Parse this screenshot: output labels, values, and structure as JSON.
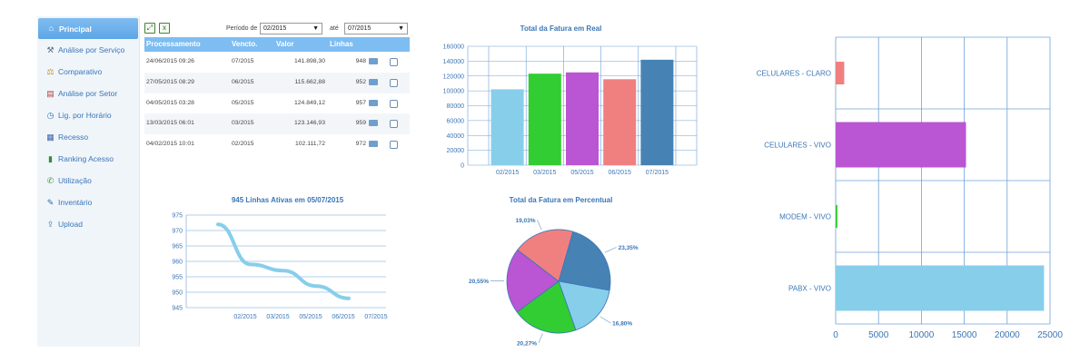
{
  "sidebar": {
    "items": [
      {
        "label": "Principal",
        "icon": "house-icon",
        "active": true
      },
      {
        "label": "Análise por Serviço",
        "icon": "tools-icon"
      },
      {
        "label": "Comparativo",
        "icon": "balance-icon"
      },
      {
        "label": "Análise por Setor",
        "icon": "chart-icon"
      },
      {
        "label": "Lig. por Horário",
        "icon": "clock-icon"
      },
      {
        "label": "Recesso",
        "icon": "calendar-icon"
      },
      {
        "label": "Ranking Acesso",
        "icon": "ranking-icon"
      },
      {
        "label": "Utilização",
        "icon": "phone-icon"
      },
      {
        "label": "Inventário",
        "icon": "inventory-icon"
      },
      {
        "label": "Upload",
        "icon": "upload-icon"
      }
    ]
  },
  "filters": {
    "period_label": "Período de",
    "from_value": "02/2015",
    "to_label": "até",
    "to_value": "07/2015"
  },
  "table": {
    "headers": [
      "Processamento",
      "Vencto.",
      "Valor",
      "Linhas"
    ],
    "rows": [
      {
        "processamento": "24/06/2015 09:26",
        "vencto": "07/2015",
        "valor": "141.898,30",
        "linhas": "948"
      },
      {
        "processamento": "27/05/2015 08:29",
        "vencto": "06/2015",
        "valor": "115.662,88",
        "linhas": "952"
      },
      {
        "processamento": "04/05/2015 03:28",
        "vencto": "05/2015",
        "valor": "124.849,12",
        "linhas": "957"
      },
      {
        "processamento": "13/03/2015 06:01",
        "vencto": "03/2015",
        "valor": "123.146,93",
        "linhas": "959"
      },
      {
        "processamento": "04/02/2015 10:01",
        "vencto": "02/2015",
        "valor": "102.111,72",
        "linhas": "972"
      }
    ]
  },
  "chart_data": [
    {
      "type": "bar",
      "title": "Total da Fatura em Real",
      "categories": [
        "02/2015",
        "03/2015",
        "05/2015",
        "06/2015",
        "07/2015"
      ],
      "values": [
        102111.72,
        123146.93,
        124849.12,
        115662.88,
        141898.3
      ],
      "colors": [
        "#87ceeb",
        "#32cd32",
        "#ba55d3",
        "#f08080",
        "#4682b4"
      ],
      "ylim": [
        0,
        160000
      ],
      "yticks": [
        "0",
        "20000",
        "40000",
        "60000",
        "80000",
        "100000",
        "120000",
        "140000",
        "160000"
      ],
      "grid": true
    },
    {
      "type": "line",
      "title": "945 Linhas Ativas em 05/07/2015",
      "categories": [
        "02/2015",
        "03/2015",
        "05/2015",
        "06/2015",
        "07/2015"
      ],
      "values": [
        972,
        959,
        957,
        952,
        948
      ],
      "color": "#87ceeb",
      "ylim": [
        945,
        975
      ],
      "yticks": [
        "945",
        "950",
        "955",
        "960",
        "965",
        "970",
        "975"
      ],
      "grid": true
    },
    {
      "type": "pie",
      "title": "Total da Fatura em Percentual",
      "labels": [
        "23,35%",
        "16,80%",
        "20,27%",
        "20,55%",
        "19,03%"
      ],
      "values": [
        23.35,
        16.8,
        20.27,
        20.55,
        19.03
      ],
      "colors": [
        "#4682b4",
        "#87ceeb",
        "#32cd32",
        "#ba55d3",
        "#f08080"
      ]
    },
    {
      "type": "bar",
      "orientation": "horizontal",
      "categories": [
        "CELULARES - CLARO",
        "CELULARES - VIVO",
        "MODEM - VIVO",
        "PABX - VIVO"
      ],
      "values": [
        1000,
        15200,
        200,
        24300
      ],
      "colors": [
        "#f08080",
        "#ba55d3",
        "#32cd32",
        "#87ceeb"
      ],
      "xlim": [
        0,
        25000
      ],
      "xticks": [
        "0",
        "5000",
        "10000",
        "15000",
        "20000",
        "25000"
      ],
      "grid": true
    }
  ]
}
